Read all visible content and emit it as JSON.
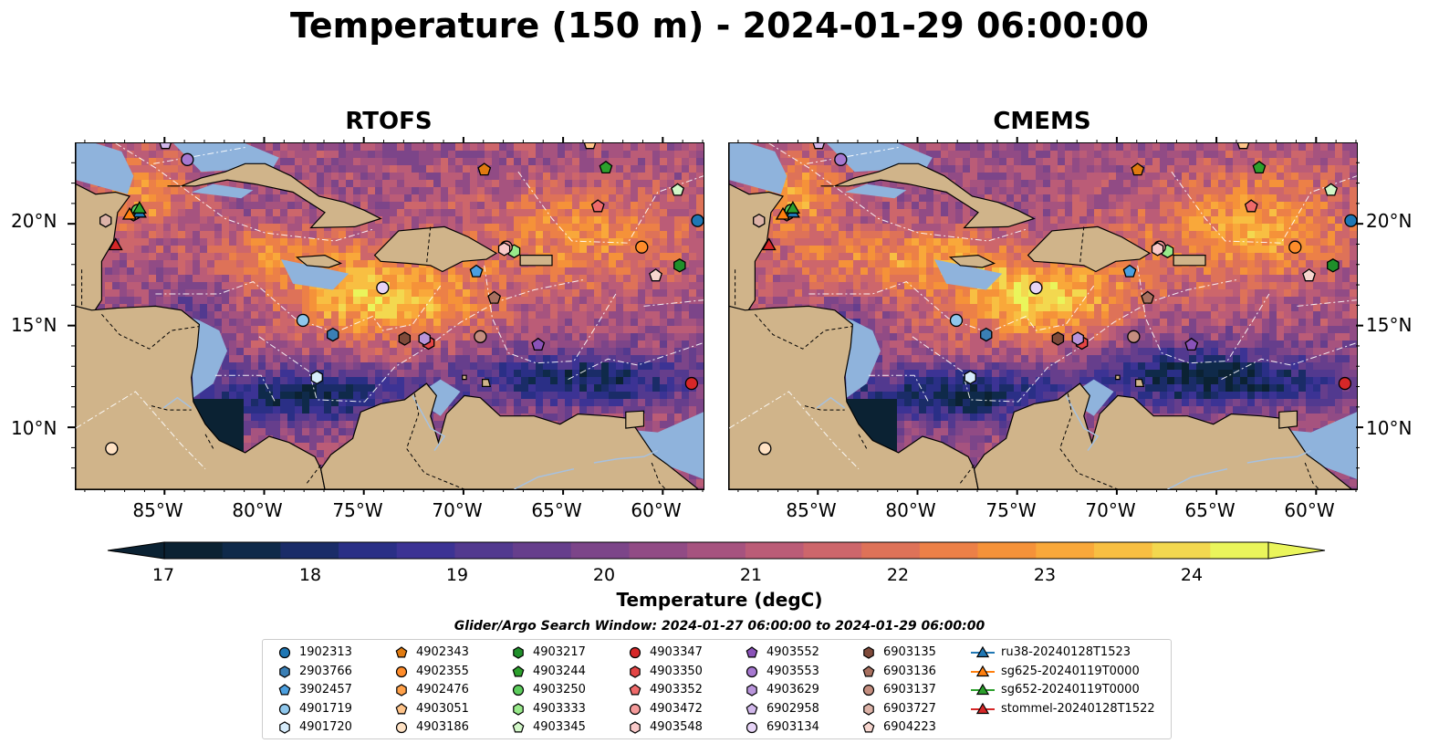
{
  "title": "Temperature (150 m) - 2024-01-29 06:00:00",
  "panels": [
    {
      "title": "RTOFS"
    },
    {
      "title": "CMEMS"
    }
  ],
  "lat_ticks": [
    "20°N",
    "15°N",
    "10°N"
  ],
  "lon_ticks": [
    "85°W",
    "80°W",
    "75°W",
    "70°W",
    "65°W",
    "60°W"
  ],
  "colorbar": {
    "label": "Temperature (degC)",
    "ticks": [
      "17",
      "18",
      "19",
      "20",
      "21",
      "22",
      "23",
      "24"
    ],
    "colors": [
      "#0b2233",
      "#0f2a4a",
      "#1a2c68",
      "#2a2f86",
      "#3c3394",
      "#52398f",
      "#663e8c",
      "#7c4589",
      "#914b85",
      "#a6537f",
      "#bb5c77",
      "#cd666b",
      "#de7258",
      "#ec8047",
      "#f59239",
      "#f9a83a",
      "#f8bf42",
      "#f3d84f",
      "#eaf55b"
    ]
  },
  "chart_data": {
    "type": "heatmap",
    "title": "Temperature (150 m) - 2024-01-29 06:00:00",
    "panels": [
      "RTOFS",
      "CMEMS"
    ],
    "xlabel": "",
    "ylabel": "",
    "xlim": [
      -89.5,
      -58
    ],
    "ylim": [
      7,
      24
    ],
    "x_ticks": [
      -85,
      -80,
      -75,
      -70,
      -65,
      -60
    ],
    "y_ticks": [
      10,
      15,
      20
    ],
    "color_range": [
      16.75,
      24.5
    ],
    "colorbar_label": "Temperature (degC)",
    "legend_title": "Glider/Argo Search Window: 2024-01-27 06:00:00 to 2024-01-29 06:00:00",
    "floats": [
      {
        "name": "1902313",
        "marker": "circle",
        "color": "#1f77b4",
        "lon": -58.3,
        "lat": 20.2
      },
      {
        "name": "2903766",
        "marker": "hexagon",
        "color": "#3a7fb5",
        "lon": -76.6,
        "lat": 14.6
      },
      {
        "name": "3902457",
        "marker": "pentagon",
        "color": "#4b9fdf",
        "lon": -69.4,
        "lat": 17.7
      },
      {
        "name": "4901719",
        "marker": "circle",
        "color": "#8fc7ec",
        "lon": -78.1,
        "lat": 15.3
      },
      {
        "name": "4901720",
        "marker": "hexagon",
        "color": "#d6ecfb",
        "lon": -77.4,
        "lat": 12.5
      },
      {
        "name": "4902343",
        "marker": "pentagon",
        "color": "#e07a10",
        "lon": -69.0,
        "lat": 22.7
      },
      {
        "name": "4902355",
        "marker": "circle",
        "color": "#ff8c2a",
        "lon": -61.1,
        "lat": 18.9
      },
      {
        "name": "4902476",
        "marker": "hexagon",
        "color": "#ffa14a",
        "lon": -86.6,
        "lat": 20.5
      },
      {
        "name": "4903051",
        "marker": "pentagon",
        "color": "#ffc48a",
        "lon": -63.7,
        "lat": 24.0
      },
      {
        "name": "4903186",
        "marker": "circle",
        "color": "#ffe2c4",
        "lon": -87.7,
        "lat": 9.0
      },
      {
        "name": "4903217",
        "marker": "hexagon",
        "color": "#1f8f2a",
        "lon": -59.2,
        "lat": 18.0
      },
      {
        "name": "4903244",
        "marker": "pentagon",
        "color": "#2ca02c",
        "lon": -62.9,
        "lat": 22.8
      },
      {
        "name": "4903250",
        "marker": "circle",
        "color": "#5ccc5c",
        "lon": -86.4,
        "lat": 20.7
      },
      {
        "name": "4903333",
        "marker": "hexagon",
        "color": "#98e98a",
        "lon": -67.5,
        "lat": 18.7
      },
      {
        "name": "4903345",
        "marker": "pentagon",
        "color": "#d2f7c8",
        "lon": -59.3,
        "lat": 21.7
      },
      {
        "name": "4903347",
        "marker": "circle",
        "color": "#d62728",
        "lon": -58.6,
        "lat": 12.2
      },
      {
        "name": "4903350",
        "marker": "hexagon",
        "color": "#e44545",
        "lon": -71.8,
        "lat": 14.2
      },
      {
        "name": "4903352",
        "marker": "pentagon",
        "color": "#ef6a6a",
        "lon": -63.3,
        "lat": 20.9
      },
      {
        "name": "4903472",
        "marker": "circle",
        "color": "#f49a9a",
        "lon": -67.9,
        "lat": 18.9
      },
      {
        "name": "4903548",
        "marker": "hexagon",
        "color": "#f9c9c9",
        "lon": -68.0,
        "lat": 18.8
      },
      {
        "name": "4903552",
        "marker": "pentagon",
        "color": "#8a52b8",
        "lon": -66.3,
        "lat": 14.1
      },
      {
        "name": "4903553",
        "marker": "circle",
        "color": "#a678d0",
        "lon": -83.9,
        "lat": 23.2
      },
      {
        "name": "4903629",
        "marker": "hexagon",
        "color": "#b995db",
        "lon": -72.0,
        "lat": 14.4
      },
      {
        "name": "6902958",
        "marker": "pentagon",
        "color": "#d2b8ec",
        "lon": -85.0,
        "lat": 24.0
      },
      {
        "name": "6903134",
        "marker": "circle",
        "color": "#e7d4f7",
        "lon": -74.1,
        "lat": 16.9
      },
      {
        "name": "6903135",
        "marker": "hexagon",
        "color": "#7f4a3a",
        "lon": -73.0,
        "lat": 14.4
      },
      {
        "name": "6903136",
        "marker": "pentagon",
        "color": "#a8705f",
        "lon": -68.5,
        "lat": 16.4
      },
      {
        "name": "6903137",
        "marker": "circle",
        "color": "#c48e7f",
        "lon": -69.2,
        "lat": 14.5
      },
      {
        "name": "6903727",
        "marker": "hexagon",
        "color": "#ddb3a8",
        "lon": -88.0,
        "lat": 20.2
      },
      {
        "name": "6904223",
        "marker": "pentagon",
        "color": "#f7d6cf",
        "lon": -60.4,
        "lat": 17.5
      }
    ],
    "gliders": [
      {
        "name": "ru38-20240128T1523",
        "color": "#1f77b4",
        "lon": -86.3,
        "lat": 20.6
      },
      {
        "name": "sg625-20240119T0000",
        "color": "#ff7f0e",
        "lon": -86.8,
        "lat": 20.5
      },
      {
        "name": "sg652-20240119T0000",
        "color": "#2ca02c",
        "lon": -86.3,
        "lat": 20.8
      },
      {
        "name": "stommel-20240128T1522",
        "color": "#d62728",
        "lon": -87.5,
        "lat": 19.0
      }
    ]
  }
}
